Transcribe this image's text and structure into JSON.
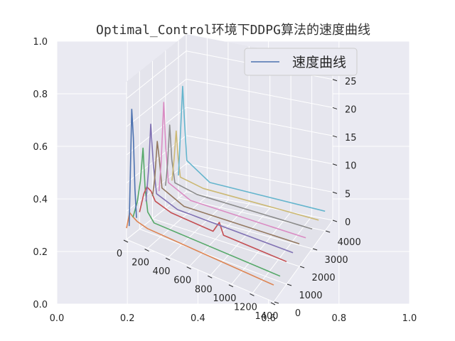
{
  "chart_data": {
    "type": "line",
    "title": "Optimal_Control环境下DDPG算法的速度曲线",
    "legend": {
      "position": "top-right",
      "entries": [
        "速度曲线"
      ]
    },
    "grid": true,
    "axes2d": {
      "x_ticks": [
        "0.0",
        "0.2",
        "0.4",
        "0.6",
        "0.8",
        "1.0"
      ],
      "y_ticks": [
        "0.0",
        "0.2",
        "0.4",
        "0.6",
        "0.8",
        "1.0"
      ],
      "xlim": [
        0,
        1
      ],
      "ylim": [
        0,
        1
      ]
    },
    "axes3d": {
      "x_ticks": [
        "0",
        "200",
        "400",
        "600",
        "800",
        "1000",
        "1200",
        "1400"
      ],
      "y_ticks": [
        "0",
        "1000",
        "2000",
        "3000",
        "4000"
      ],
      "z_ticks": [
        "0",
        "5",
        "10",
        "15",
        "20",
        "25"
      ],
      "xlim": [
        0,
        1400
      ],
      "ylim": [
        0,
        4600
      ],
      "zlim": [
        0,
        28
      ]
    },
    "series": [
      {
        "color": "#DD8452",
        "episode": 0,
        "points": [
          [
            0,
            2
          ],
          [
            30,
            5
          ],
          [
            60,
            4.5
          ],
          [
            100,
            4
          ],
          [
            200,
            3.5
          ],
          [
            1400,
            3
          ]
        ]
      },
      {
        "color": "#55A868",
        "episode": 500,
        "points": [
          [
            0,
            3
          ],
          [
            40,
            6
          ],
          [
            70,
            10
          ],
          [
            95,
            16
          ],
          [
            115,
            9
          ],
          [
            140,
            5
          ],
          [
            200,
            3.5
          ],
          [
            1400,
            3
          ]
        ]
      },
      {
        "color": "#C44E52",
        "episode": 1000,
        "points": [
          [
            0,
            3
          ],
          [
            40,
            6.5
          ],
          [
            70,
            8
          ],
          [
            110,
            7.5
          ],
          [
            150,
            6
          ],
          [
            300,
            5
          ],
          [
            700,
            4.5
          ],
          [
            760,
            6.5
          ],
          [
            800,
            4.5
          ],
          [
            1400,
            4
          ]
        ]
      },
      {
        "color": "#8172B3",
        "episode": 1500,
        "points": [
          [
            0,
            4
          ],
          [
            25,
            10
          ],
          [
            45,
            18
          ],
          [
            70,
            11
          ],
          [
            100,
            6
          ],
          [
            300,
            4.5
          ],
          [
            1400,
            4
          ]
        ]
      },
      {
        "color": "#937860",
        "episode": 2000,
        "points": [
          [
            0,
            4
          ],
          [
            20,
            7
          ],
          [
            45,
            14
          ],
          [
            65,
            11
          ],
          [
            90,
            6
          ],
          [
            300,
            4
          ],
          [
            1400,
            4
          ]
        ]
      },
      {
        "color": "#DA8BC3",
        "episode": 2500,
        "points": [
          [
            0,
            4
          ],
          [
            20,
            9
          ],
          [
            45,
            20
          ],
          [
            65,
            12
          ],
          [
            90,
            6
          ],
          [
            300,
            4
          ],
          [
            1400,
            3.5
          ]
        ]
      },
      {
        "color": "#8C8C8C",
        "episode": 3000,
        "points": [
          [
            0,
            4
          ],
          [
            20,
            8
          ],
          [
            40,
            15
          ],
          [
            60,
            9
          ],
          [
            90,
            5
          ],
          [
            300,
            4
          ],
          [
            1400,
            3.5
          ]
        ]
      },
      {
        "color": "#CCB974",
        "episode": 3500,
        "points": [
          [
            0,
            4
          ],
          [
            20,
            8
          ],
          [
            40,
            13
          ],
          [
            60,
            8
          ],
          [
            80,
            5
          ],
          [
            300,
            4
          ],
          [
            1400,
            3.5
          ]
        ]
      },
      {
        "color": "#64B5CD",
        "episode": 4000,
        "points": [
          [
            0,
            4
          ],
          [
            20,
            12
          ],
          [
            40,
            20
          ],
          [
            60,
            13
          ],
          [
            80,
            7
          ],
          [
            300,
            4
          ],
          [
            1400,
            3.5
          ]
        ]
      }
    ]
  }
}
